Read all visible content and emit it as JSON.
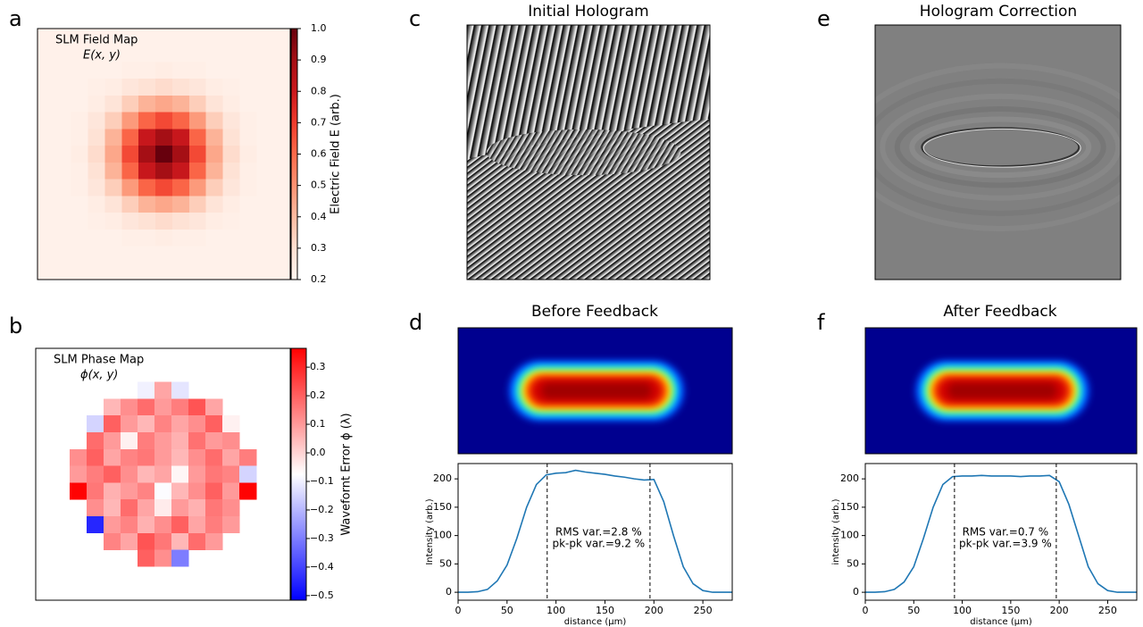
{
  "chart_data": [
    {
      "type": "heatmap",
      "panel_label": "a",
      "title": "SLM Field Map",
      "subtitle": "E(x, y)",
      "colormap": "Reds",
      "colorbar_label": "Electric Field E (arb.)",
      "clim": [
        0.2,
        1.0
      ],
      "cticks": [
        0.2,
        0.3,
        0.4,
        0.5,
        0.6,
        0.7,
        0.8,
        0.9,
        {
          "value": 1,
          "label": "1.0"
        }
      ],
      "z": [
        [
          0.22,
          0.22,
          0.22,
          0.22,
          0.22,
          0.22,
          0.22,
          0.22,
          0.22,
          0.22,
          0.22,
          0.22,
          0.22,
          0.22,
          0.22
        ],
        [
          0.22,
          0.22,
          0.22,
          0.22,
          0.22,
          0.22,
          0.22,
          0.22,
          0.22,
          0.22,
          0.22,
          0.22,
          0.22,
          0.22,
          0.22
        ],
        [
          0.22,
          0.22,
          0.22,
          0.22,
          0.22,
          0.23,
          0.23,
          0.24,
          0.23,
          0.23,
          0.22,
          0.22,
          0.22,
          0.22,
          0.22
        ],
        [
          0.22,
          0.22,
          0.22,
          0.23,
          0.24,
          0.27,
          0.29,
          0.31,
          0.29,
          0.27,
          0.24,
          0.23,
          0.22,
          0.22,
          0.22
        ],
        [
          0.22,
          0.22,
          0.22,
          0.24,
          0.28,
          0.35,
          0.42,
          0.45,
          0.42,
          0.35,
          0.28,
          0.24,
          0.22,
          0.22,
          0.22
        ],
        [
          0.22,
          0.22,
          0.23,
          0.27,
          0.35,
          0.48,
          0.61,
          0.67,
          0.61,
          0.48,
          0.35,
          0.27,
          0.23,
          0.22,
          0.22
        ],
        [
          0.22,
          0.22,
          0.23,
          0.29,
          0.42,
          0.61,
          0.81,
          0.9,
          0.81,
          0.61,
          0.42,
          0.29,
          0.23,
          0.22,
          0.22
        ],
        [
          0.22,
          0.22,
          0.24,
          0.31,
          0.45,
          0.67,
          0.9,
          1.0,
          0.9,
          0.67,
          0.45,
          0.31,
          0.24,
          0.22,
          0.22
        ],
        [
          0.22,
          0.22,
          0.23,
          0.29,
          0.42,
          0.61,
          0.81,
          0.9,
          0.81,
          0.61,
          0.42,
          0.29,
          0.23,
          0.22,
          0.22
        ],
        [
          0.22,
          0.22,
          0.23,
          0.27,
          0.35,
          0.48,
          0.61,
          0.67,
          0.61,
          0.48,
          0.35,
          0.27,
          0.23,
          0.22,
          0.22
        ],
        [
          0.22,
          0.22,
          0.22,
          0.24,
          0.28,
          0.35,
          0.42,
          0.45,
          0.42,
          0.35,
          0.28,
          0.24,
          0.22,
          0.22,
          0.22
        ],
        [
          0.22,
          0.22,
          0.22,
          0.23,
          0.24,
          0.27,
          0.29,
          0.31,
          0.29,
          0.27,
          0.24,
          0.23,
          0.22,
          0.22,
          0.22
        ],
        [
          0.22,
          0.22,
          0.22,
          0.22,
          0.22,
          0.23,
          0.23,
          0.24,
          0.23,
          0.23,
          0.22,
          0.22,
          0.22,
          0.22,
          0.22
        ],
        [
          0.22,
          0.22,
          0.22,
          0.22,
          0.22,
          0.22,
          0.22,
          0.22,
          0.22,
          0.22,
          0.22,
          0.22,
          0.22,
          0.22,
          0.22
        ],
        [
          0.22,
          0.22,
          0.22,
          0.22,
          0.22,
          0.22,
          0.22,
          0.22,
          0.22,
          0.22,
          0.22,
          0.22,
          0.22,
          0.22,
          0.22
        ]
      ]
    },
    {
      "type": "heatmap",
      "panel_label": "b",
      "title": "SLM Phase Map",
      "subtitle": "ϕ(x, y)",
      "colormap": "bwr",
      "colorbar_label": "Wavefornt Error ϕ (λ)",
      "clim": [
        -0.516,
        0.366
      ],
      "cticks": [
        0.3,
        0.2,
        0.1,
        {
          "value": 0,
          "label": "0.0"
        },
        {
          "value": -0.1,
          "label": "−0.1"
        },
        {
          "value": -0.2,
          "label": "−0.2"
        },
        {
          "value": -0.3,
          "label": "−0.3"
        },
        {
          "value": -0.4,
          "label": "−0.4"
        },
        {
          "value": -0.5,
          "label": "−0.5"
        }
      ],
      "z": [
        [
          null,
          null,
          null,
          null,
          null,
          null,
          null,
          null,
          null,
          null,
          null,
          null,
          null,
          null,
          null
        ],
        [
          null,
          null,
          null,
          null,
          null,
          null,
          null,
          null,
          null,
          null,
          null,
          null,
          null,
          null,
          null
        ],
        [
          null,
          null,
          null,
          null,
          null,
          null,
          -0.1,
          0.08,
          -0.12,
          null,
          null,
          null,
          null,
          null,
          null
        ],
        [
          null,
          null,
          null,
          null,
          0.05,
          0.12,
          0.18,
          0.1,
          0.15,
          0.22,
          0.08,
          null,
          null,
          null,
          null
        ],
        [
          null,
          null,
          null,
          -0.15,
          0.2,
          0.1,
          0.05,
          0.14,
          0.08,
          0.12,
          0.2,
          -0.05,
          null,
          null,
          null
        ],
        [
          null,
          null,
          null,
          0.18,
          0.1,
          -0.05,
          0.15,
          0.1,
          0.06,
          0.17,
          0.1,
          0.12,
          null,
          null,
          null
        ],
        [
          null,
          null,
          0.12,
          0.2,
          0.08,
          0.14,
          0.16,
          0.1,
          0.05,
          0.12,
          0.18,
          0.08,
          0.15,
          null,
          null
        ],
        [
          null,
          null,
          0.1,
          0.15,
          0.2,
          0.12,
          0.05,
          0.08,
          -0.06,
          0.1,
          0.16,
          0.14,
          -0.15,
          null,
          null
        ],
        [
          null,
          null,
          0.36,
          0.16,
          0.06,
          0.1,
          0.14,
          -0.08,
          0.05,
          0.12,
          0.2,
          0.1,
          0.36,
          null,
          null
        ],
        [
          null,
          null,
          null,
          0.12,
          0.05,
          0.18,
          0.08,
          -0.04,
          0.1,
          0.06,
          0.16,
          0.12,
          null,
          null,
          null
        ],
        [
          null,
          null,
          null,
          -0.45,
          0.1,
          0.14,
          0.06,
          0.12,
          0.2,
          0.08,
          0.15,
          0.1,
          null,
          null,
          null
        ],
        [
          null,
          null,
          null,
          null,
          0.14,
          0.08,
          0.22,
          0.16,
          0.05,
          0.18,
          0.1,
          null,
          null,
          null,
          null
        ],
        [
          null,
          null,
          null,
          null,
          null,
          null,
          0.2,
          0.12,
          -0.3,
          null,
          null,
          null,
          null,
          null,
          null
        ],
        [
          null,
          null,
          null,
          null,
          null,
          null,
          null,
          null,
          null,
          null,
          null,
          null,
          null,
          null,
          null
        ],
        [
          null,
          null,
          null,
          null,
          null,
          null,
          null,
          null,
          null,
          null,
          null,
          null,
          null,
          null,
          null
        ]
      ]
    },
    {
      "type": "image",
      "panel_label": "c",
      "title": "Initial Hologram"
    },
    {
      "type": "image",
      "panel_label": "e",
      "title": "Hologram Correction"
    },
    {
      "type": "line",
      "panel_label": "d",
      "title": "Before Feedback",
      "xlabel": "distance (μm)",
      "ylabel": "Intensity (arb.)",
      "xlim": [
        0,
        280
      ],
      "ylim": [
        -14,
        227
      ],
      "xticks": [
        0,
        50,
        100,
        150,
        200,
        250
      ],
      "yticks": [
        0,
        50,
        100,
        150,
        200
      ],
      "x": [
        0,
        10,
        20,
        30,
        40,
        50,
        60,
        70,
        80,
        90,
        100,
        110,
        120,
        130,
        140,
        150,
        160,
        170,
        180,
        190,
        200,
        210,
        220,
        230,
        240,
        250,
        260,
        270,
        280
      ],
      "values": [
        0,
        0,
        1,
        5,
        20,
        48,
        95,
        150,
        190,
        207,
        210,
        211,
        215,
        212,
        210,
        208,
        205,
        203,
        200,
        198,
        199,
        160,
        100,
        45,
        15,
        3,
        0,
        0,
        0
      ],
      "color": "#1f77b4",
      "vlines": [
        91,
        196
      ],
      "annotations": [
        "RMS var.=2.8 %",
        "pk-pk var.=9.2 %"
      ]
    },
    {
      "type": "line",
      "panel_label": "f",
      "title": "After Feedback",
      "xlabel": "distance (μm)",
      "ylabel": "intensity (arb.)",
      "xlim": [
        0,
        280
      ],
      "ylim": [
        -14,
        227
      ],
      "xticks": [
        0,
        50,
        100,
        150,
        200,
        250
      ],
      "yticks": [
        0,
        50,
        100,
        150,
        200
      ],
      "x": [
        0,
        10,
        20,
        30,
        40,
        50,
        60,
        70,
        80,
        90,
        100,
        110,
        120,
        130,
        140,
        150,
        160,
        170,
        180,
        190,
        200,
        210,
        220,
        230,
        240,
        250,
        260,
        270,
        280
      ],
      "values": [
        0,
        0,
        1,
        5,
        18,
        45,
        95,
        150,
        190,
        204,
        205,
        205,
        206,
        205,
        205,
        205,
        204,
        205,
        205,
        206,
        195,
        155,
        100,
        45,
        15,
        3,
        0,
        0,
        0
      ],
      "color": "#1f77b4",
      "vlines": [
        92,
        197
      ],
      "annotations": [
        "RMS var.=0.7 %",
        "pk-pk var.=3.9 %"
      ]
    }
  ]
}
